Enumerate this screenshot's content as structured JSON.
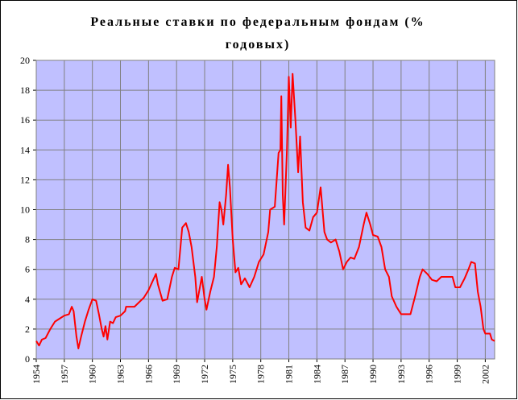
{
  "chart_data": {
    "type": "line",
    "title": "Реальные ставки по федеральным фондам (% годовых)",
    "xlim": [
      1954,
      2003
    ],
    "xticks": [
      1954,
      1957,
      1960,
      1963,
      1966,
      1969,
      1972,
      1975,
      1978,
      1981,
      1984,
      1987,
      1990,
      1993,
      1996,
      1999,
      2002
    ],
    "ylim": [
      0,
      20
    ],
    "yticks": [
      0,
      2,
      4,
      6,
      8,
      10,
      12,
      14,
      16,
      18,
      20
    ],
    "grid": true,
    "plot_background": "#c0c0ff",
    "series": [
      {
        "color": "#ff0000",
        "x": [
          1954.0,
          1954.3,
          1954.6,
          1955.0,
          1955.5,
          1956.0,
          1956.5,
          1957.0,
          1957.5,
          1957.8,
          1958.0,
          1958.3,
          1958.5,
          1958.8,
          1959.2,
          1959.6,
          1960.0,
          1960.4,
          1960.7,
          1961.0,
          1961.2,
          1961.4,
          1961.6,
          1961.9,
          1962.2,
          1962.5,
          1963.0,
          1963.5,
          1963.6,
          1964.5,
          1965.0,
          1965.5,
          1966.0,
          1966.5,
          1966.8,
          1967.0,
          1967.5,
          1968.0,
          1968.5,
          1968.8,
          1969.2,
          1969.6,
          1970.0,
          1970.3,
          1970.6,
          1971.0,
          1971.2,
          1971.7,
          1972.0,
          1972.2,
          1972.6,
          1973.0,
          1973.3,
          1973.6,
          1973.8,
          1974.0,
          1974.3,
          1974.5,
          1974.7,
          1975.0,
          1975.3,
          1975.6,
          1975.9,
          1976.3,
          1976.8,
          1977.3,
          1977.8,
          1978.3,
          1978.8,
          1979.0,
          1979.5,
          1979.9,
          1980.1,
          1980.2,
          1980.35,
          1980.5,
          1980.8,
          1981.0,
          1981.2,
          1981.4,
          1981.7,
          1982.0,
          1982.2,
          1982.5,
          1982.8,
          1983.2,
          1983.6,
          1984.0,
          1984.4,
          1984.8,
          1985.1,
          1985.5,
          1986.0,
          1986.4,
          1986.8,
          1987.2,
          1987.6,
          1988.0,
          1988.5,
          1989.0,
          1989.3,
          1989.7,
          1990.0,
          1990.5,
          1990.9,
          1991.3,
          1991.7,
          1992.0,
          1992.5,
          1993.0,
          1993.5,
          1994.0,
          1994.5,
          1995.0,
          1995.3,
          1995.8,
          1996.3,
          1996.8,
          1997.3,
          1998.0,
          1998.5,
          1998.8,
          1999.3,
          1999.8,
          2000.2,
          2000.5,
          2000.9,
          2001.2,
          2001.5,
          2001.8,
          2002.0,
          2002.5,
          2002.7,
          2003.0
        ],
        "values": [
          1.2,
          0.9,
          1.3,
          1.4,
          2.0,
          2.5,
          2.7,
          2.9,
          3.0,
          3.5,
          3.2,
          1.5,
          0.7,
          1.5,
          2.5,
          3.3,
          4.0,
          3.9,
          3.0,
          2.0,
          1.5,
          2.2,
          1.3,
          2.5,
          2.4,
          2.8,
          2.9,
          3.2,
          3.5,
          3.5,
          3.8,
          4.1,
          4.6,
          5.3,
          5.7,
          5.0,
          3.9,
          4.0,
          5.5,
          6.1,
          6.0,
          8.8,
          9.1,
          8.5,
          7.5,
          5.5,
          3.8,
          5.5,
          4.0,
          3.3,
          4.5,
          5.5,
          7.5,
          10.5,
          10.0,
          9.0,
          11.0,
          13.0,
          11.5,
          8.0,
          5.8,
          6.1,
          5.0,
          5.4,
          4.8,
          5.5,
          6.5,
          7.0,
          8.5,
          10.0,
          10.2,
          13.8,
          14.0,
          17.6,
          11.0,
          9.0,
          14.0,
          18.9,
          15.5,
          19.1,
          16.0,
          12.5,
          14.9,
          10.5,
          8.8,
          8.6,
          9.5,
          9.8,
          11.5,
          8.5,
          8.0,
          7.8,
          8.0,
          7.2,
          6.0,
          6.5,
          6.8,
          6.7,
          7.5,
          9.0,
          9.8,
          9.0,
          8.3,
          8.2,
          7.5,
          6.0,
          5.5,
          4.2,
          3.5,
          3.0,
          3.0,
          3.0,
          4.2,
          5.5,
          6.0,
          5.7,
          5.3,
          5.2,
          5.5,
          5.5,
          5.5,
          4.8,
          4.8,
          5.4,
          6.0,
          6.5,
          6.4,
          4.5,
          3.5,
          2.0,
          1.7,
          1.7,
          1.3,
          1.2
        ]
      }
    ]
  }
}
